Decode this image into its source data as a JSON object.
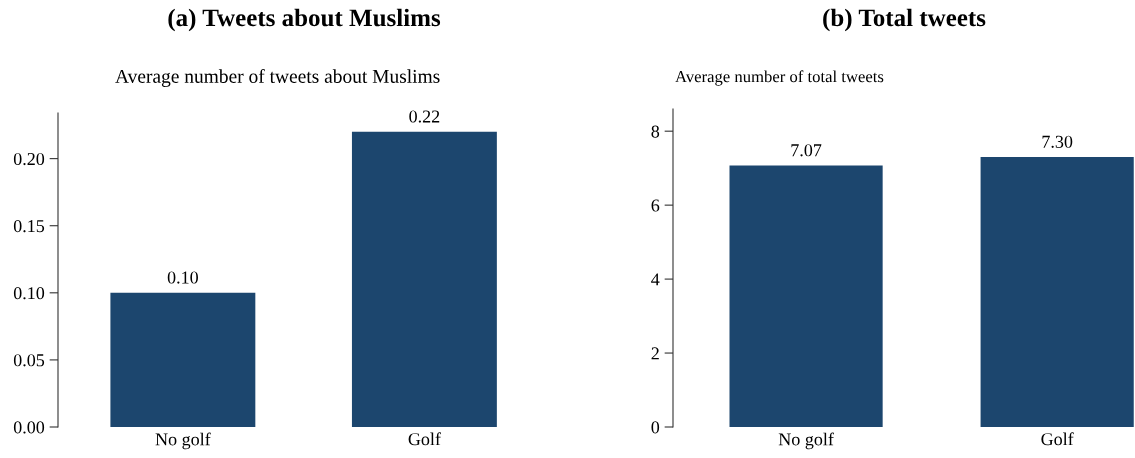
{
  "chart_data": [
    {
      "type": "bar",
      "title": "(a) Tweets about Muslims",
      "ylabel": "Average number of tweets about Muslims",
      "categories": [
        "No golf",
        "Golf"
      ],
      "values": [
        0.1,
        0.22
      ],
      "value_labels": [
        "0.10",
        "0.22"
      ],
      "color": "#1c466e",
      "ylim": [
        0,
        0.234
      ],
      "yticks": [
        "0.00",
        "0.05",
        "0.10",
        "0.15",
        "0.20"
      ],
      "grid": false
    },
    {
      "type": "bar",
      "title": "(b) Total tweets",
      "ylabel": "Average number of total tweets",
      "categories": [
        "No golf",
        "Golf"
      ],
      "values": [
        7.07,
        7.3
      ],
      "value_labels": [
        "7.07",
        "7.30"
      ],
      "color": "#1c466e",
      "ylim": [
        0,
        8.6
      ],
      "yticks": [
        0,
        2,
        4,
        6,
        8
      ],
      "grid": false
    }
  ]
}
